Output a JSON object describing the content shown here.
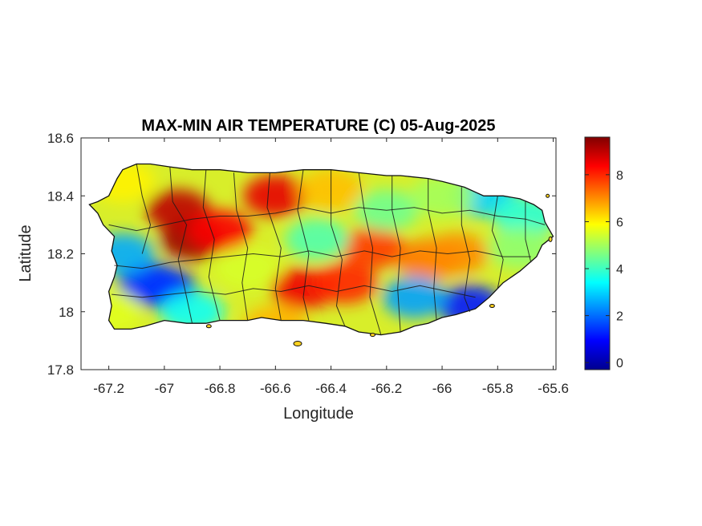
{
  "chart_data": {
    "type": "heatmap",
    "title": "MAX-MIN AIR TEMPERATURE (C) 05-Aug-2025",
    "xlabel": "Longitude",
    "ylabel": "Latitude",
    "xlim": [
      -67.3,
      -65.59
    ],
    "ylim": [
      17.8,
      18.6
    ],
    "xticks": [
      -67.2,
      -67,
      -66.8,
      -66.6,
      -66.4,
      -66.2,
      -66,
      -65.8,
      -65.6
    ],
    "xtick_labels": [
      "-67.2",
      "-67",
      "-66.8",
      "-66.6",
      "-66.4",
      "-66.2",
      "-66",
      "-65.8",
      "-65.6"
    ],
    "yticks": [
      17.8,
      18,
      18.2,
      18.4,
      18.6
    ],
    "ytick_labels": [
      "17.8",
      "18",
      "18.2",
      "18.4",
      "18.6"
    ],
    "colorbar": {
      "colormap": "jet",
      "range": [
        -0.3,
        9.6
      ],
      "ticks": [
        0,
        2,
        4,
        6,
        8
      ],
      "tick_labels": [
        "0",
        "2",
        "4",
        "6",
        "8"
      ]
    },
    "grid": false,
    "box": true,
    "hotspots": [
      {
        "lon": -66.9,
        "lat": 18.25,
        "value": 9.3
      },
      {
        "lon": -66.95,
        "lat": 18.35,
        "value": 9.0
      },
      {
        "lon": -66.6,
        "lat": 18.4,
        "value": 8.6
      },
      {
        "lon": -66.8,
        "lat": 18.28,
        "value": 8.4
      },
      {
        "lon": -66.5,
        "lat": 18.08,
        "value": 8.5
      },
      {
        "lon": -66.35,
        "lat": 18.1,
        "value": 8.0
      },
      {
        "lon": -66.25,
        "lat": 18.22,
        "value": 7.8
      },
      {
        "lon": -66.05,
        "lat": 18.18,
        "value": 7.2
      },
      {
        "lon": -65.95,
        "lat": 18.2,
        "value": 7.0
      },
      {
        "lon": -66.4,
        "lat": 18.42,
        "value": 6.5
      },
      {
        "lon": -67.0,
        "lat": 18.08,
        "value": 1.0
      },
      {
        "lon": -67.05,
        "lat": 18.1,
        "value": 1.5
      },
      {
        "lon": -67.15,
        "lat": 18.2,
        "value": 2.6
      },
      {
        "lon": -65.9,
        "lat": 18.02,
        "value": 1.2
      },
      {
        "lon": -65.85,
        "lat": 18.4,
        "value": 3.0
      },
      {
        "lon": -66.1,
        "lat": 18.05,
        "value": 2.5
      },
      {
        "lon": -66.9,
        "lat": 18.0,
        "value": 3.5
      },
      {
        "lon": -65.7,
        "lat": 18.33,
        "value": 3.8
      },
      {
        "lon": -66.2,
        "lat": 18.35,
        "value": 4.5
      },
      {
        "lon": -66.0,
        "lat": 18.4,
        "value": 5.0
      },
      {
        "lon": -66.7,
        "lat": 18.15,
        "value": 5.5
      },
      {
        "lon": -67.15,
        "lat": 18.45,
        "value": 6.0
      },
      {
        "lon": -66.45,
        "lat": 18.25,
        "value": 4.2
      },
      {
        "lon": -65.72,
        "lat": 18.22,
        "value": 4.8
      },
      {
        "lon": -67.2,
        "lat": 18.0,
        "value": 5.6
      },
      {
        "lon": -66.6,
        "lat": 17.95,
        "value": 6.6
      }
    ]
  }
}
